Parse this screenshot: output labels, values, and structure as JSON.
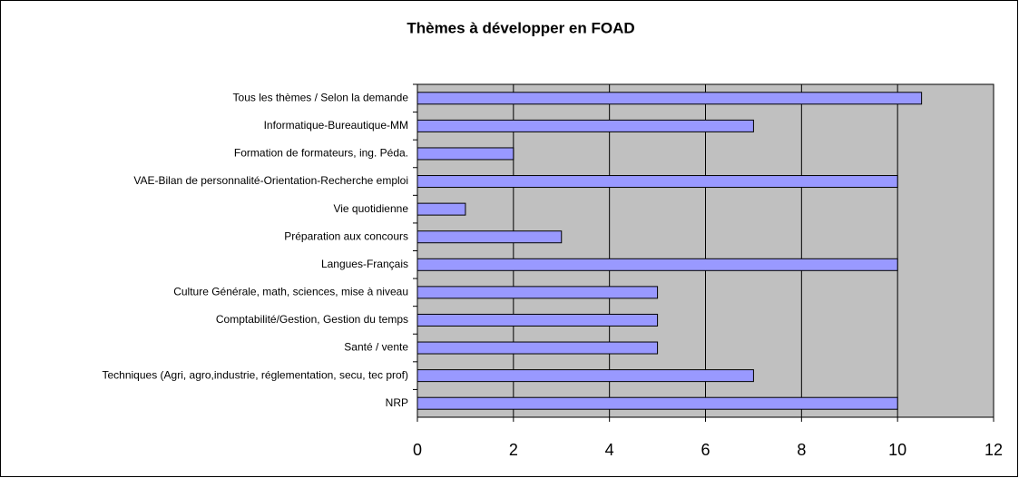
{
  "chart_data": {
    "type": "bar",
    "orientation": "horizontal",
    "title": "Thèmes à développer en FOAD",
    "categories": [
      "Tous les thèmes / Selon la demande",
      "Informatique-Bureautique-MM",
      "Formation de formateurs, ing. Péda.",
      "VAE-Bilan de personnalité-Orientation-Recherche emploi",
      "Vie quotidienne",
      "Préparation aux concours",
      "Langues-Français",
      "Culture Générale, math, sciences, mise à niveau",
      "Comptabilité/Gestion, Gestion du temps",
      "Santé / vente",
      "Techniques (Agri, agro,industrie, réglementation, secu, tec prof)",
      "NRP"
    ],
    "values": [
      10.5,
      7,
      2,
      10,
      1,
      3,
      10,
      5,
      5,
      5,
      7,
      10
    ],
    "color": "#9999ff",
    "plot_background": "#c0c0c0",
    "xlim": [
      0,
      12
    ],
    "xticks": [
      0,
      2,
      4,
      6,
      8,
      10,
      12
    ],
    "grid": true
  }
}
